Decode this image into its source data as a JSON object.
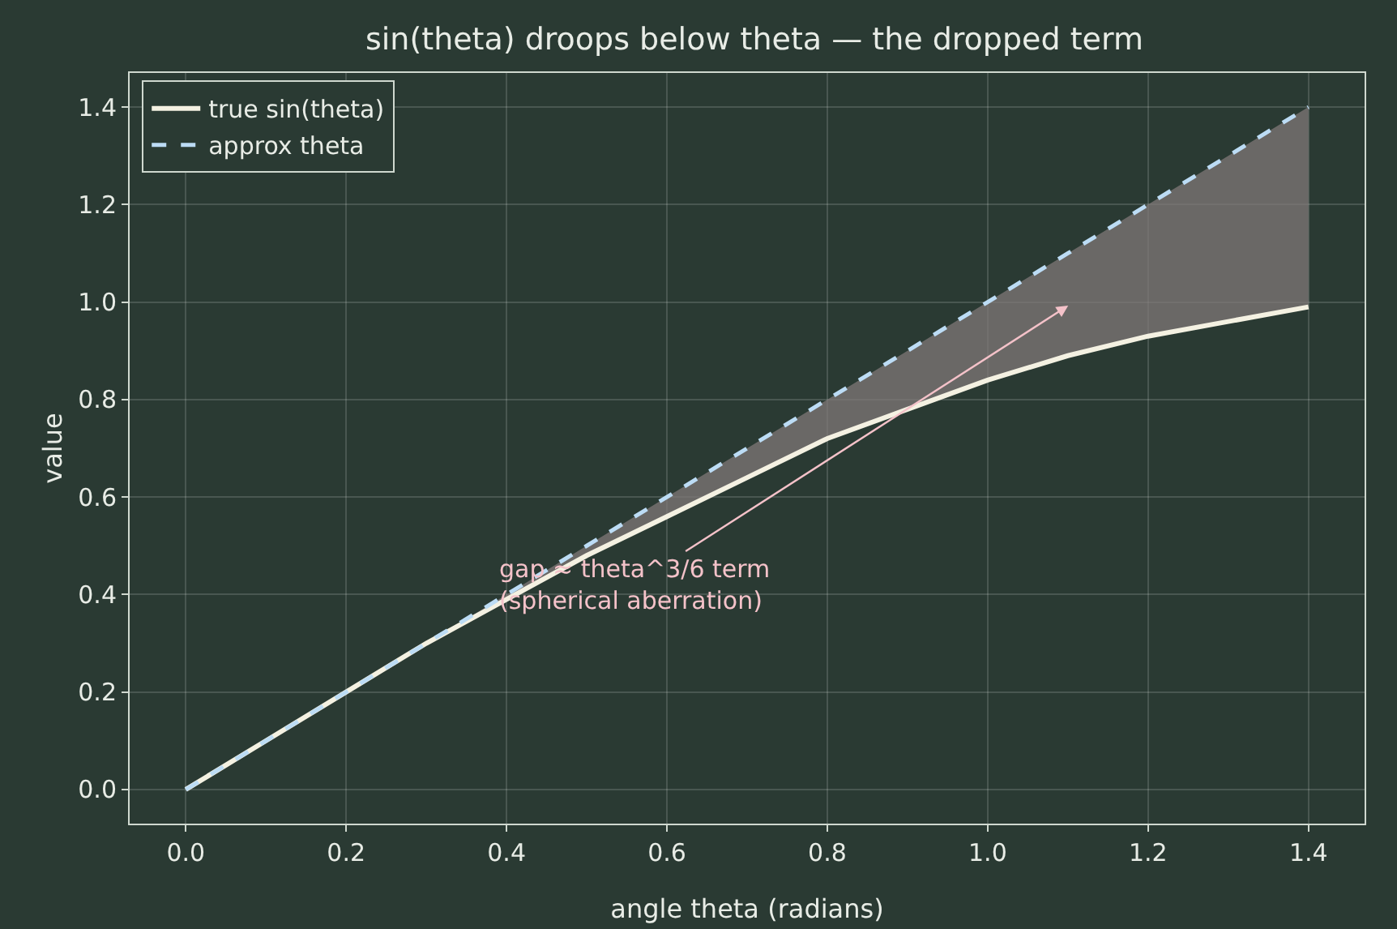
{
  "chart_data": {
    "type": "line",
    "title": "sin(theta) droops below theta — the dropped term",
    "xlabel": "angle theta (radians)",
    "ylabel": "value",
    "x": [
      0,
      0.1,
      0.2,
      0.3,
      0.4,
      0.5,
      0.6,
      0.7,
      0.8,
      0.9,
      1.0,
      1.1,
      1.2,
      1.3,
      1.4
    ],
    "series": [
      {
        "name": "true sin(theta)",
        "color": "#f4f1e2",
        "line_style": "solid",
        "values": [
          0,
          0.1,
          0.2,
          0.3,
          0.39,
          0.48,
          0.56,
          0.64,
          0.72,
          0.78,
          0.84,
          0.89,
          0.93,
          0.96,
          0.99
        ]
      },
      {
        "name": "approx theta",
        "color": "#bcdcf5",
        "line_style": "dashed",
        "values": [
          0,
          0.1,
          0.2,
          0.3,
          0.4,
          0.5,
          0.6,
          0.7,
          0.8,
          0.9,
          1.0,
          1.1,
          1.2,
          1.3,
          1.4
        ],
        "lower": [
          0,
          0.1,
          0.2,
          0.3,
          0.39,
          0.48,
          0.56,
          0.64,
          0.72,
          0.78,
          0.84,
          0.89,
          0.93,
          0.96,
          0.99
        ],
        "upper": [
          0,
          0.1,
          0.2,
          0.3,
          0.4,
          0.5,
          0.6,
          0.7,
          0.8,
          0.9,
          1.0,
          1.1,
          1.2,
          1.3,
          1.4
        ]
      }
    ],
    "annotations": [
      "gap ≈ theta^3/6 term\n(spherical aberration)"
    ],
    "xlim": [
      -0.07,
      1.47
    ],
    "ylim": [
      -0.07,
      1.47
    ],
    "xticks": [
      {
        "value": 0,
        "label": "0.0"
      },
      0.2,
      0.4,
      0.6,
      0.8,
      {
        "value": 1,
        "label": "1.0"
      },
      1.2,
      1.4
    ],
    "yticks": [
      {
        "value": 0,
        "label": "0.0"
      },
      0.2,
      0.4,
      0.6,
      0.8,
      {
        "value": 1,
        "label": "1.0"
      },
      1.2,
      1.4
    ],
    "grid": true,
    "legend": "top left",
    "marker": "none"
  }
}
